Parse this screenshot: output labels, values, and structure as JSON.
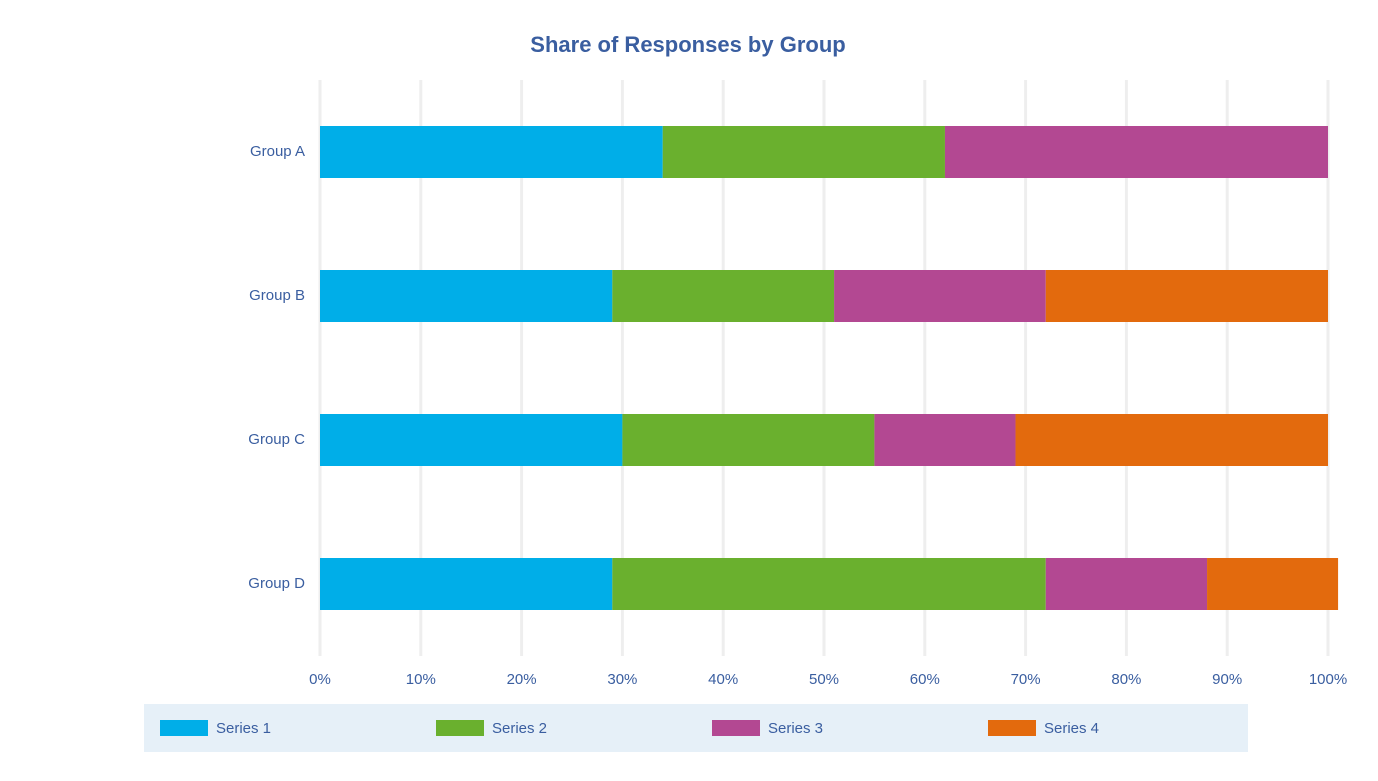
{
  "chart_data": {
    "type": "stacked-barh",
    "title": "Share of Responses by Group",
    "categories": [
      "Group A",
      "Group B",
      "Group C",
      "Group D"
    ],
    "series": [
      {
        "name": "Series 1",
        "color": "#00aee8",
        "values": [
          34,
          29,
          30,
          29
        ]
      },
      {
        "name": "Series 2",
        "color": "#6ab02e",
        "values": [
          28,
          22,
          25,
          43
        ]
      },
      {
        "name": "Series 3",
        "color": "#b34892",
        "values": [
          38,
          21,
          14,
          16
        ]
      },
      {
        "name": "Series 4",
        "color": "#e36a0d",
        "values": [
          0,
          28,
          31,
          13
        ]
      }
    ],
    "xlim": [
      0,
      100
    ],
    "xticks": [
      {
        "value": 0,
        "label": "0%"
      },
      {
        "value": 10,
        "label": "10%"
      },
      {
        "value": 20,
        "label": "20%"
      },
      {
        "value": 30,
        "label": "30%"
      },
      {
        "value": 40,
        "label": "40%"
      },
      {
        "value": 50,
        "label": "50%"
      },
      {
        "value": 60,
        "label": "60%"
      },
      {
        "value": 70,
        "label": "70%"
      },
      {
        "value": 80,
        "label": "80%"
      },
      {
        "value": 90,
        "label": "90%"
      },
      {
        "value": 100,
        "label": "100%"
      }
    ],
    "grid": true,
    "legend": "bottom"
  }
}
